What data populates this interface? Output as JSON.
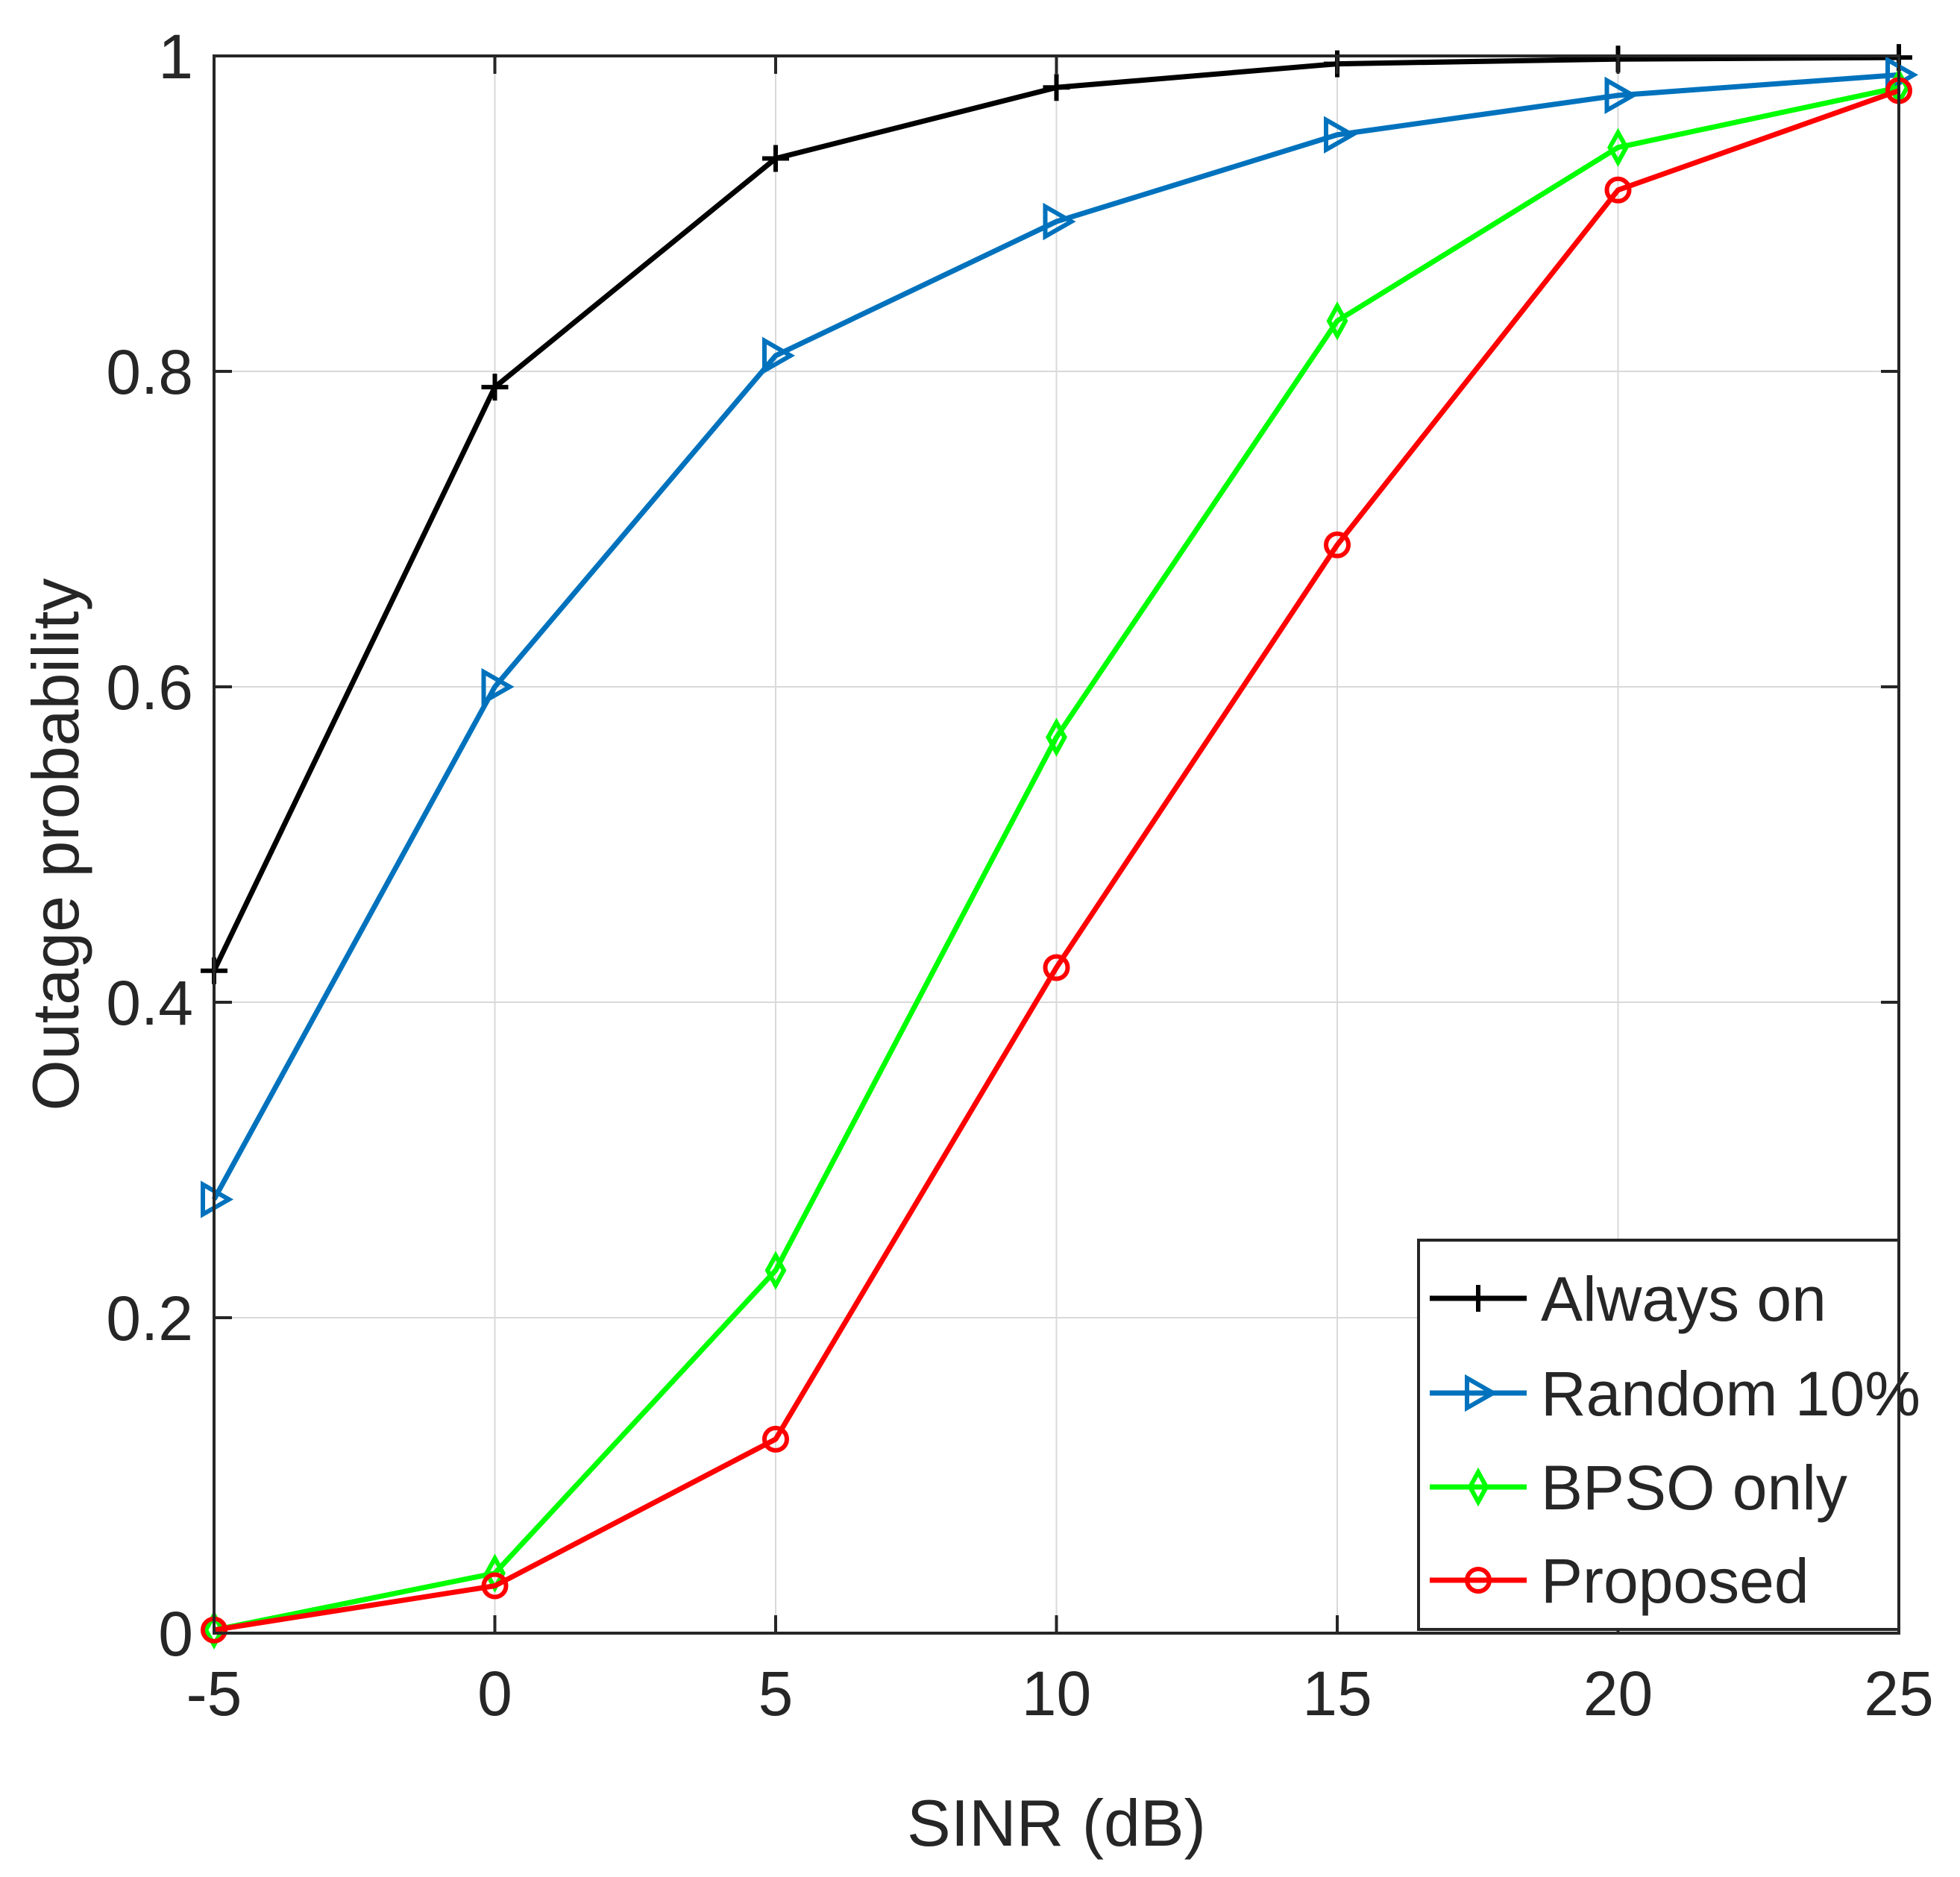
{
  "chart_data": {
    "type": "line",
    "title": "",
    "xlabel": "SINR (dB)",
    "ylabel": "Outage probability",
    "x": [
      -5,
      0,
      5,
      10,
      15,
      20,
      25
    ],
    "xlim": [
      -5,
      25
    ],
    "ylim": [
      0,
      1
    ],
    "xticks": [
      -5,
      0,
      5,
      10,
      15,
      20,
      25
    ],
    "yticks": [
      0,
      0.2,
      0.4,
      0.6,
      0.8,
      1
    ],
    "xtick_labels": [
      "-5",
      "0",
      "5",
      "10",
      "15",
      "20",
      "25"
    ],
    "ytick_labels": [
      "0",
      "0.2",
      "0.4",
      "0.6",
      "0.8",
      "1"
    ],
    "grid": true,
    "legend_position": "bottom-right",
    "series": [
      {
        "name": "Always on",
        "color": "#000000",
        "marker": "plus",
        "values": [
          0.42,
          0.79,
          0.935,
          0.98,
          0.995,
          0.998,
          0.999
        ]
      },
      {
        "name": "Random 10%",
        "color": "#0072BD",
        "marker": "triangle-right",
        "values": [
          0.275,
          0.6,
          0.81,
          0.895,
          0.95,
          0.975,
          0.988
        ]
      },
      {
        "name": "BPSO only",
        "color": "#00FF00",
        "marker": "diamond",
        "values": [
          0.002,
          0.038,
          0.23,
          0.568,
          0.832,
          0.942,
          0.98
        ]
      },
      {
        "name": "Proposed",
        "color": "#FF0000",
        "marker": "circle",
        "values": [
          0.002,
          0.03,
          0.123,
          0.422,
          0.69,
          0.915,
          0.978
        ]
      }
    ]
  }
}
